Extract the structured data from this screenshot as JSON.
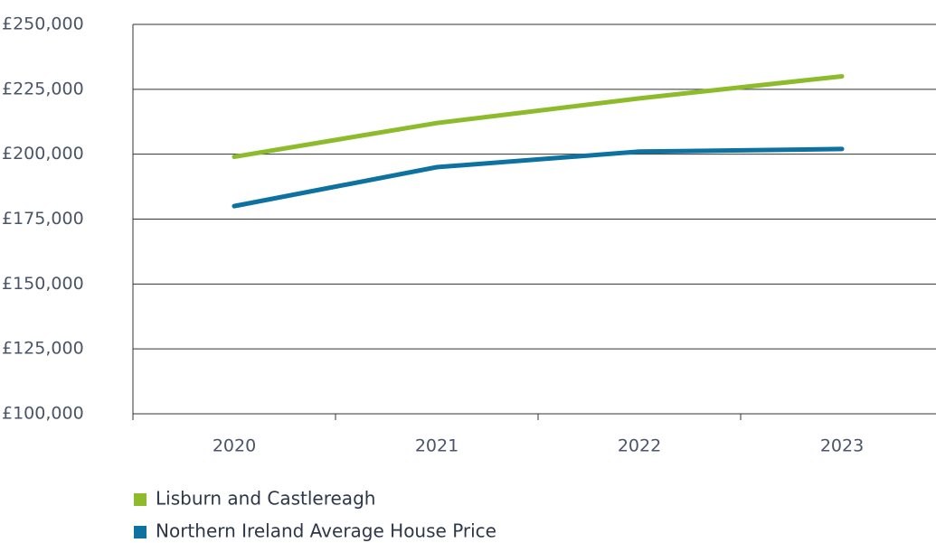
{
  "chart_data": {
    "type": "line",
    "categories": [
      "2020",
      "2021",
      "2022",
      "2023"
    ],
    "series": [
      {
        "name": "Lisburn and Castlereagh",
        "color": "#8dbb2c",
        "values": [
          199000,
          212000,
          221500,
          230000
        ]
      },
      {
        "name": "Northern Ireland Average House Price",
        "color": "#0e72a0",
        "values": [
          180000,
          195000,
          201000,
          202000
        ]
      }
    ],
    "ylim": [
      100000,
      250000
    ],
    "yticks": [
      {
        "value": 100000,
        "label": "£100,000"
      },
      {
        "value": 125000,
        "label": "£125,000"
      },
      {
        "value": 150000,
        "label": "£150,000"
      },
      {
        "value": 175000,
        "label": "£175,000"
      },
      {
        "value": 200000,
        "label": "£200,000"
      },
      {
        "value": 225000,
        "label": "£225,000"
      },
      {
        "value": 250000,
        "label": "£250,000"
      }
    ],
    "grid": true,
    "legend": "bottom"
  }
}
